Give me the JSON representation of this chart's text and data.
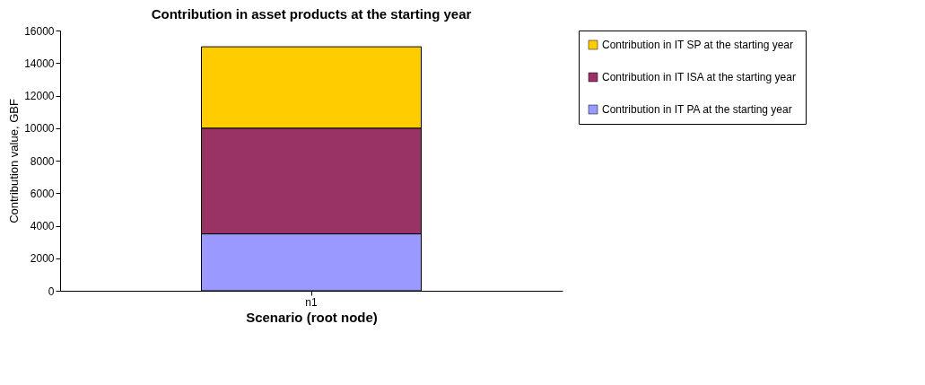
{
  "chart_data": {
    "type": "bar",
    "title": "Contribution in asset products at the starting year",
    "xlabel": "Scenario (root node)",
    "ylabel": "Contribution value, GBF",
    "categories": [
      "n1"
    ],
    "stacked": true,
    "series": [
      {
        "name": "Contribution in IT PA at the starting year",
        "color": "#9999ff",
        "values": [
          3500
        ]
      },
      {
        "name": "Contribution in IT ISA at the starting year",
        "color": "#993366",
        "values": [
          6500
        ]
      },
      {
        "name": "Contribution in IT SP at the starting year",
        "color": "#ffcc00",
        "values": [
          5000
        ]
      }
    ],
    "ylim": [
      0,
      16000
    ],
    "yticks": [
      0,
      2000,
      4000,
      6000,
      8000,
      10000,
      12000,
      14000,
      16000
    ],
    "legend": "right"
  }
}
